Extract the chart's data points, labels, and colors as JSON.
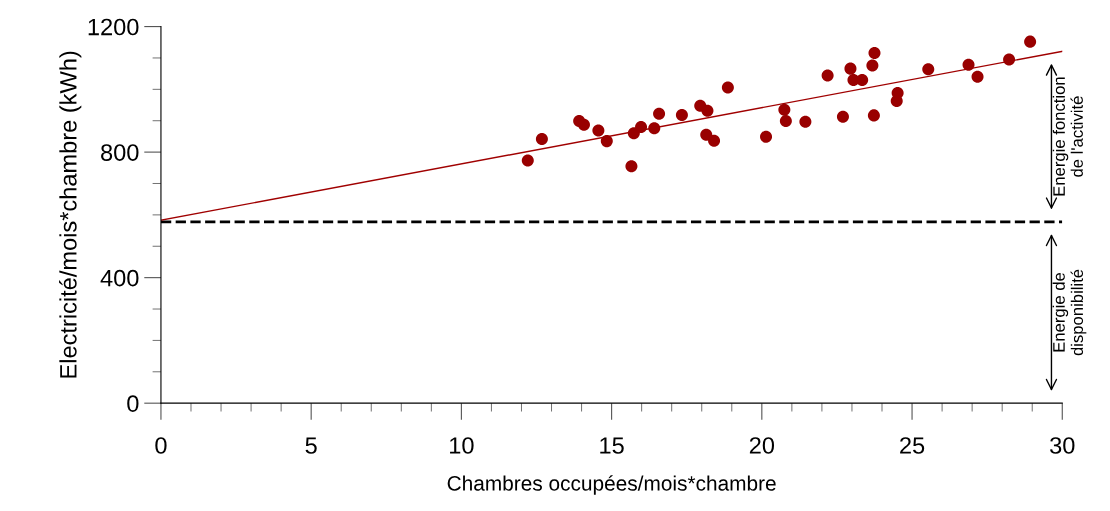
{
  "chart_data": {
    "type": "scatter",
    "xlabel": "Chambres occupées/mois*chambre",
    "ylabel": "Electricité/mois*chambre (kWh)",
    "xlim": [
      0,
      30
    ],
    "xticks": [
      0,
      5,
      10,
      15,
      20,
      25,
      30
    ],
    "ylim": [
      0,
      1200
    ],
    "yticks": [
      0,
      400,
      800,
      1200
    ],
    "grid": false,
    "legend": false,
    "series": [
      {
        "marker": "circle",
        "color": "#990000",
        "x": [
          12.21,
          12.68,
          13.92,
          14.08,
          14.56,
          14.84,
          15.66,
          15.74,
          15.98,
          16.42,
          16.58,
          17.34,
          17.95,
          18.19,
          18.15,
          18.41,
          18.87,
          20.14,
          20.75,
          20.8,
          21.45,
          22.19,
          22.7,
          22.95,
          23.05,
          23.34,
          23.73,
          23.68,
          23.75,
          24.52,
          24.49,
          25.54,
          26.88,
          27.18,
          28.23,
          28.93
        ],
        "values": [
          773,
          842,
          899,
          887,
          869,
          835,
          755,
          860,
          880,
          876,
          922,
          918,
          948,
          932,
          855,
          836,
          1006,
          849,
          935,
          899,
          897,
          1044,
          913,
          1066,
          1030,
          1030,
          917,
          1076,
          1116,
          988,
          963,
          1064,
          1078,
          1040,
          1095,
          1152
        ]
      },
      {
        "type": "line",
        "marker": "none",
        "color": "#a00000",
        "x": [
          0,
          30
        ],
        "values": [
          583,
          1121
        ]
      }
    ],
    "ref_lines": [
      {
        "axis": "y",
        "value": 578,
        "color": "#000000",
        "line_style": "dashed"
      }
    ],
    "annotations": [
      "Energie fonction\nde l'activité",
      "Energie de\ndisponibilité"
    ]
  }
}
